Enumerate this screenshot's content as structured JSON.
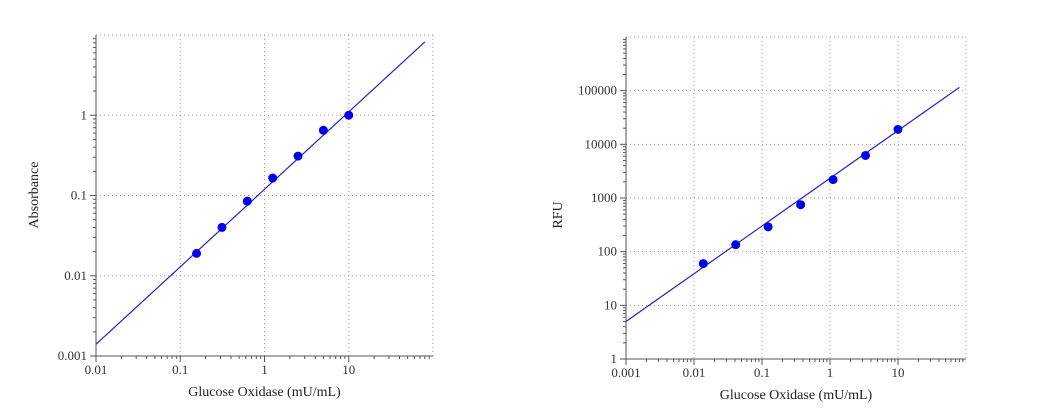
{
  "chart_data": [
    {
      "type": "scatter",
      "title": "",
      "xlabel": "Glucose Oxidase (mU/mL)",
      "ylabel": "Absorbance",
      "xscale": "log",
      "yscale": "log",
      "xlim": [
        0.01,
        100
      ],
      "ylim": [
        0.001,
        10
      ],
      "xticks": [
        0.01,
        0.1,
        1,
        10
      ],
      "xtick_labels": [
        "0.01",
        "0.1",
        "1",
        "10"
      ],
      "yticks": [
        0.001,
        0.01,
        0.1,
        1
      ],
      "ytick_labels": [
        "0.001",
        "0.01",
        "0.1",
        "1"
      ],
      "grid": true,
      "point_color": "#0000ee",
      "line_color": "#2222cc",
      "series": [
        {
          "x": [
            0.156,
            0.3125,
            0.625,
            1.25,
            2.5,
            5,
            10
          ],
          "y": [
            0.019,
            0.04,
            0.085,
            0.165,
            0.31,
            0.65,
            1.0
          ]
        }
      ],
      "fit_line": {
        "x": [
          0.01,
          80
        ],
        "y": [
          0.0014,
          8.2
        ]
      }
    },
    {
      "type": "scatter",
      "title": "",
      "xlabel": "Glucose Oxidase (mU/mL)",
      "ylabel": "RFU",
      "xscale": "log",
      "yscale": "log",
      "xlim": [
        0.001,
        100
      ],
      "ylim": [
        1,
        1000000
      ],
      "xticks": [
        0.001,
        0.01,
        0.1,
        1,
        10
      ],
      "xtick_labels": [
        "0.001",
        "0.01",
        "0.1",
        "1",
        "10"
      ],
      "yticks": [
        1,
        10,
        100,
        1000,
        10000,
        100000
      ],
      "ytick_labels": [
        "1",
        "10",
        "100",
        "1000",
        "10000",
        "100000"
      ],
      "grid": true,
      "point_color": "#0000ee",
      "line_color": "#2222cc",
      "series": [
        {
          "x": [
            0.0137,
            0.041,
            0.123,
            0.37,
            1.11,
            3.33,
            10
          ],
          "y": [
            60,
            135,
            290,
            750,
            2200,
            6200,
            19000
          ]
        }
      ],
      "fit_line": {
        "x": [
          0.001,
          80
        ],
        "y": [
          5,
          115000
        ]
      }
    }
  ]
}
